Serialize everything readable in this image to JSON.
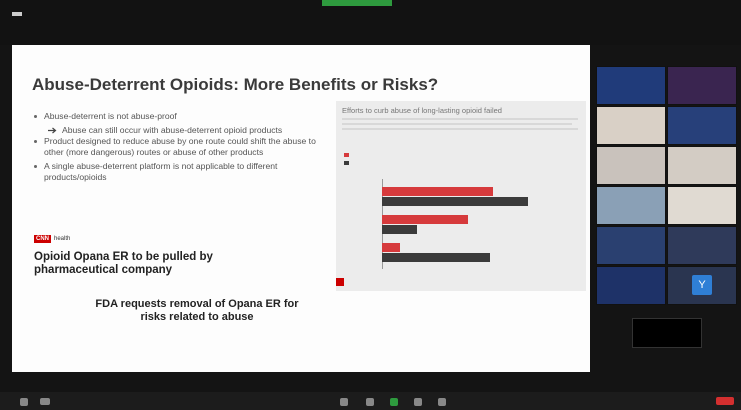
{
  "slide": {
    "title": "Abuse-Deterrent Opioids: More Benefits or Risks?",
    "bullets": [
      {
        "text": "Abuse-deterrent is not abuse-proof",
        "sub": [
          "Abuse can still occur with abuse-deterrent opioid products"
        ]
      },
      {
        "text": "Product designed to reduce abuse by one route could shift the abuse to other (more dangerous) routes or abuse of other products",
        "sub": []
      },
      {
        "text": "A single abuse-deterrent platform is not applicable to different products/opioids",
        "sub": []
      }
    ],
    "news": {
      "logo": "CNN",
      "section": "health",
      "headline": "Opioid Opana ER to be pulled by pharmaceutical company",
      "headline2": "FDA requests removal of Opana ER for risks related to abuse"
    },
    "chart": {
      "type": "bar",
      "title": "Efforts to curb abuse of long-lasting opioid failed",
      "xlim": [
        0,
        100
      ],
      "series": [
        {
          "color": "#d63a3c",
          "values": [
            76,
            59,
            12
          ]
        },
        {
          "color": "#3b3b3b",
          "values": [
            100,
            24,
            74
          ]
        }
      ]
    }
  },
  "participants": {
    "avatar_initial": "Y"
  }
}
